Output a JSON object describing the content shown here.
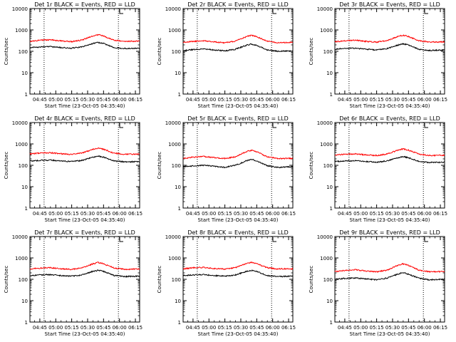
{
  "page": {
    "background": "#ffffff",
    "colors": {
      "events": "#000000",
      "lld": "#ff0000",
      "axes": "#000000"
    }
  },
  "chart_data": [
    {
      "type": "line",
      "title": "Det 1r BLACK = Events, RED = LLD",
      "xlabel": "Start Time (23-Oct-05 04:35:40)",
      "ylabel": "Counts/sec",
      "yscale": "log",
      "ylim": [
        1,
        10000
      ],
      "yticks": [
        1,
        10,
        100,
        1000,
        10000
      ],
      "yticklabels": [
        "1",
        "10",
        "100",
        "1000",
        "10000"
      ],
      "xlim": [
        "04:35:40",
        "06:19:00"
      ],
      "xticks": [
        "04:45",
        "05:00",
        "05:15",
        "05:30",
        "05:45",
        "06:00",
        "06:15"
      ],
      "vlines": [
        "04:49:00",
        "05:59:00"
      ],
      "series": [
        {
          "name": "Events",
          "color": "#000000",
          "x": [
            "04:35:40",
            "04:45",
            "04:55",
            "05:05",
            "05:15",
            "05:25",
            "05:35",
            "05:40",
            "05:45",
            "05:55",
            "06:05",
            "06:19"
          ],
          "values": [
            150,
            160,
            165,
            150,
            140,
            160,
            230,
            260,
            230,
            150,
            135,
            140
          ]
        },
        {
          "name": "LLD",
          "color": "#ff0000",
          "x": [
            "04:35:40",
            "04:45",
            "04:55",
            "05:05",
            "05:15",
            "05:25",
            "05:35",
            "05:40",
            "05:45",
            "05:55",
            "06:05",
            "06:19"
          ],
          "values": [
            290,
            330,
            345,
            305,
            285,
            340,
            520,
            600,
            520,
            330,
            290,
            300
          ]
        }
      ]
    },
    {
      "type": "line",
      "title": "Det 2r BLACK = Events, RED = LLD",
      "xlabel": "Start Time (23-Oct-05 04:35:40)",
      "ylabel": "Counts/sec",
      "yscale": "log",
      "ylim": [
        1,
        10000
      ],
      "yticks": [
        1,
        10,
        100,
        1000,
        10000
      ],
      "yticklabels": [
        "1",
        "10",
        "100",
        "1000",
        "10000"
      ],
      "xlim": [
        "04:35:40",
        "06:19:00"
      ],
      "xticks": [
        "04:45",
        "05:00",
        "05:15",
        "05:30",
        "05:45",
        "06:00",
        "06:15"
      ],
      "vlines": [
        "04:49:00",
        "05:59:00"
      ],
      "series": [
        {
          "name": "Events",
          "color": "#000000",
          "x": [
            "04:35:40",
            "04:45",
            "04:55",
            "05:05",
            "05:15",
            "05:25",
            "05:35",
            "05:40",
            "05:45",
            "05:55",
            "06:05",
            "06:19"
          ],
          "values": [
            110,
            120,
            130,
            115,
            105,
            125,
            190,
            220,
            190,
            115,
            100,
            105
          ]
        },
        {
          "name": "LLD",
          "color": "#ff0000",
          "x": [
            "04:35:40",
            "04:45",
            "04:55",
            "05:05",
            "05:15",
            "05:25",
            "05:35",
            "05:40",
            "05:45",
            "05:55",
            "06:05",
            "06:19"
          ],
          "values": [
            260,
            290,
            310,
            275,
            250,
            300,
            480,
            560,
            480,
            300,
            255,
            260
          ]
        }
      ]
    },
    {
      "type": "line",
      "title": "Det 3r BLACK = Events, RED = LLD",
      "xlabel": "Start Time (23-Oct-05 04:35:40)",
      "ylabel": "Counts/sec",
      "yscale": "log",
      "ylim": [
        1,
        10000
      ],
      "yticks": [
        1,
        10,
        100,
        1000,
        10000
      ],
      "yticklabels": [
        "1",
        "10",
        "100",
        "1000",
        "10000"
      ],
      "xlim": [
        "04:35:40",
        "06:19:00"
      ],
      "xticks": [
        "04:45",
        "05:00",
        "05:15",
        "05:30",
        "05:45",
        "06:00",
        "06:15"
      ],
      "vlines": [
        "04:49:00",
        "05:59:00"
      ],
      "series": [
        {
          "name": "Events",
          "color": "#000000",
          "x": [
            "04:35:40",
            "04:45",
            "04:55",
            "05:05",
            "05:15",
            "05:25",
            "05:35",
            "05:40",
            "05:45",
            "05:55",
            "06:05",
            "06:19"
          ],
          "values": [
            125,
            135,
            140,
            125,
            115,
            135,
            195,
            225,
            195,
            125,
            110,
            115
          ]
        },
        {
          "name": "LLD",
          "color": "#ff0000",
          "x": [
            "04:35:40",
            "04:45",
            "04:55",
            "05:05",
            "05:15",
            "05:25",
            "05:35",
            "05:40",
            "05:45",
            "05:55",
            "06:05",
            "06:19"
          ],
          "values": [
            280,
            310,
            330,
            290,
            270,
            320,
            490,
            570,
            490,
            310,
            270,
            275
          ]
        }
      ]
    },
    {
      "type": "line",
      "title": "Det 4r BLACK = Events, RED = LLD",
      "xlabel": "Start Time (23-Oct-05 04:35:40)",
      "ylabel": "Counts/sec",
      "yscale": "log",
      "ylim": [
        1,
        10000
      ],
      "yticks": [
        1,
        10,
        100,
        1000,
        10000
      ],
      "yticklabels": [
        "1",
        "10",
        "100",
        "1000",
        "10000"
      ],
      "xlim": [
        "04:35:40",
        "06:19:00"
      ],
      "xticks": [
        "04:45",
        "05:00",
        "05:15",
        "05:30",
        "05:45",
        "06:00",
        "06:15"
      ],
      "vlines": [
        "04:49:00",
        "05:59:00"
      ],
      "series": [
        {
          "name": "Events",
          "color": "#000000",
          "x": [
            "04:35:40",
            "04:45",
            "04:55",
            "05:05",
            "05:15",
            "05:25",
            "05:35",
            "05:40",
            "05:45",
            "05:55",
            "06:05",
            "06:19"
          ],
          "values": [
            160,
            170,
            175,
            160,
            150,
            170,
            240,
            270,
            240,
            160,
            145,
            150
          ]
        },
        {
          "name": "LLD",
          "color": "#ff0000",
          "x": [
            "04:35:40",
            "04:45",
            "04:55",
            "05:05",
            "05:15",
            "05:25",
            "05:35",
            "05:40",
            "05:45",
            "05:55",
            "06:05",
            "06:19"
          ],
          "values": [
            340,
            370,
            385,
            345,
            325,
            380,
            560,
            640,
            560,
            370,
            330,
            335
          ]
        }
      ]
    },
    {
      "type": "line",
      "title": "Det 5r BLACK = Events, RED = LLD",
      "xlabel": "Start Time (23-Oct-05 04:35:40)",
      "ylabel": "Counts/sec",
      "yscale": "log",
      "ylim": [
        1,
        10000
      ],
      "yticks": [
        1,
        10,
        100,
        1000,
        10000
      ],
      "yticklabels": [
        "1",
        "10",
        "100",
        "1000",
        "10000"
      ],
      "xlim": [
        "04:35:40",
        "06:19:00"
      ],
      "xticks": [
        "04:45",
        "05:00",
        "05:15",
        "05:30",
        "05:45",
        "06:00",
        "06:15"
      ],
      "vlines": [
        "04:49:00",
        "05:59:00"
      ],
      "series": [
        {
          "name": "Events",
          "color": "#000000",
          "x": [
            "04:35:40",
            "04:45",
            "04:55",
            "05:05",
            "05:15",
            "05:25",
            "05:35",
            "05:40",
            "05:45",
            "05:55",
            "06:05",
            "06:19"
          ],
          "values": [
            85,
            95,
            100,
            90,
            80,
            100,
            160,
            190,
            160,
            95,
            80,
            85
          ]
        },
        {
          "name": "LLD",
          "color": "#ff0000",
          "x": [
            "04:35:40",
            "04:45",
            "04:55",
            "05:05",
            "05:15",
            "05:25",
            "05:35",
            "05:40",
            "05:45",
            "05:55",
            "06:05",
            "06:19"
          ],
          "values": [
            210,
            240,
            260,
            230,
            205,
            250,
            430,
            510,
            430,
            250,
            205,
            210
          ]
        }
      ]
    },
    {
      "type": "line",
      "title": "Det 6r BLACK = Events, RED = LLD",
      "xlabel": "Start Time (23-Oct-05 04:35:40)",
      "ylabel": "Counts/sec",
      "yscale": "log",
      "ylim": [
        1,
        10000
      ],
      "yticks": [
        1,
        10,
        100,
        1000,
        10000
      ],
      "yticklabels": [
        "1",
        "10",
        "100",
        "1000",
        "10000"
      ],
      "xlim": [
        "04:35:40",
        "06:19:00"
      ],
      "xticks": [
        "04:45",
        "05:00",
        "05:15",
        "05:30",
        "05:45",
        "06:00",
        "06:15"
      ],
      "vlines": [
        "04:49:00",
        "05:59:00"
      ],
      "series": [
        {
          "name": "Events",
          "color": "#000000",
          "x": [
            "04:35:40",
            "04:45",
            "04:55",
            "05:05",
            "05:15",
            "05:25",
            "05:35",
            "05:40",
            "05:45",
            "05:55",
            "06:05",
            "06:19"
          ],
          "values": [
            150,
            160,
            165,
            150,
            140,
            160,
            225,
            255,
            225,
            150,
            135,
            140
          ]
        },
        {
          "name": "LLD",
          "color": "#ff0000",
          "x": [
            "04:35:40",
            "04:45",
            "04:55",
            "05:05",
            "05:15",
            "05:25",
            "05:35",
            "05:40",
            "05:45",
            "05:55",
            "06:05",
            "06:19"
          ],
          "values": [
            300,
            330,
            345,
            305,
            285,
            340,
            510,
            590,
            510,
            330,
            290,
            295
          ]
        }
      ]
    },
    {
      "type": "line",
      "title": "Det 7r BLACK = Events, RED = LLD",
      "xlabel": "Start Time (23-Oct-05 04:35:40)",
      "ylabel": "Counts/sec",
      "yscale": "log",
      "ylim": [
        1,
        10000
      ],
      "yticks": [
        1,
        10,
        100,
        1000,
        10000
      ],
      "yticklabels": [
        "1",
        "10",
        "100",
        "1000",
        "10000"
      ],
      "xlim": [
        "04:35:40",
        "06:19:00"
      ],
      "xticks": [
        "04:45",
        "05:00",
        "05:15",
        "05:30",
        "05:45",
        "06:00",
        "06:15"
      ],
      "vlines": [
        "04:49:00",
        "05:59:00"
      ],
      "series": [
        {
          "name": "Events",
          "color": "#000000",
          "x": [
            "04:35:40",
            "04:45",
            "04:55",
            "05:05",
            "05:15",
            "05:25",
            "05:35",
            "05:40",
            "05:45",
            "05:55",
            "06:05",
            "06:19"
          ],
          "values": [
            150,
            160,
            165,
            150,
            140,
            160,
            235,
            265,
            235,
            150,
            135,
            140
          ]
        },
        {
          "name": "LLD",
          "color": "#ff0000",
          "x": [
            "04:35:40",
            "04:45",
            "04:55",
            "05:05",
            "05:15",
            "05:25",
            "05:35",
            "05:40",
            "05:45",
            "05:55",
            "06:05",
            "06:19"
          ],
          "values": [
            300,
            335,
            350,
            310,
            290,
            345,
            530,
            610,
            530,
            335,
            295,
            300
          ]
        }
      ]
    },
    {
      "type": "line",
      "title": "Det 8r BLACK = Events, RED = LLD",
      "xlabel": "Start Time (23-Oct-05 04:35:40)",
      "ylabel": "Counts/sec",
      "yscale": "log",
      "ylim": [
        1,
        10000
      ],
      "yticks": [
        1,
        10,
        100,
        1000,
        10000
      ],
      "yticklabels": [
        "1",
        "10",
        "100",
        "1000",
        "10000"
      ],
      "xlim": [
        "04:35:40",
        "06:19:00"
      ],
      "xticks": [
        "04:45",
        "05:00",
        "05:15",
        "05:30",
        "05:45",
        "06:00",
        "06:15"
      ],
      "vlines": [
        "04:49:00",
        "05:59:00"
      ],
      "series": [
        {
          "name": "Events",
          "color": "#000000",
          "x": [
            "04:35:40",
            "04:45",
            "04:55",
            "05:05",
            "05:15",
            "05:25",
            "05:35",
            "05:40",
            "05:45",
            "05:55",
            "06:05",
            "06:19"
          ],
          "values": [
            150,
            160,
            165,
            150,
            140,
            160,
            230,
            260,
            230,
            150,
            135,
            140
          ]
        },
        {
          "name": "LLD",
          "color": "#ff0000",
          "x": [
            "04:35:40",
            "04:45",
            "04:55",
            "05:05",
            "05:15",
            "05:25",
            "05:35",
            "05:40",
            "05:45",
            "05:55",
            "06:05",
            "06:19"
          ],
          "values": [
            310,
            345,
            360,
            320,
            300,
            355,
            540,
            620,
            540,
            345,
            305,
            310
          ]
        }
      ]
    },
    {
      "type": "line",
      "title": "Det 9r BLACK = Events, RED = LLD",
      "xlabel": "Start Time (23-Oct-05 04:35:40)",
      "ylabel": "Counts/sec",
      "yscale": "log",
      "ylim": [
        1,
        10000
      ],
      "yticks": [
        1,
        10,
        100,
        1000,
        10000
      ],
      "yticklabels": [
        "1",
        "10",
        "100",
        "1000",
        "10000"
      ],
      "xlim": [
        "04:35:40",
        "06:19:00"
      ],
      "xticks": [
        "04:45",
        "05:00",
        "05:15",
        "05:30",
        "05:45",
        "06:00",
        "06:15"
      ],
      "vlines": [
        "04:49:00",
        "05:59:00"
      ],
      "series": [
        {
          "name": "Events",
          "color": "#000000",
          "x": [
            "04:35:40",
            "04:45",
            "04:55",
            "05:05",
            "05:15",
            "05:25",
            "05:35",
            "05:40",
            "05:45",
            "05:55",
            "06:05",
            "06:19"
          ],
          "values": [
            100,
            110,
            115,
            105,
            95,
            115,
            175,
            205,
            175,
            110,
            95,
            100
          ]
        },
        {
          "name": "LLD",
          "color": "#ff0000",
          "x": [
            "04:35:40",
            "04:45",
            "04:55",
            "05:05",
            "05:15",
            "05:25",
            "05:35",
            "05:40",
            "05:45",
            "05:55",
            "06:05",
            "06:19"
          ],
          "values": [
            230,
            260,
            280,
            245,
            225,
            270,
            450,
            530,
            450,
            265,
            225,
            230
          ]
        }
      ]
    }
  ]
}
